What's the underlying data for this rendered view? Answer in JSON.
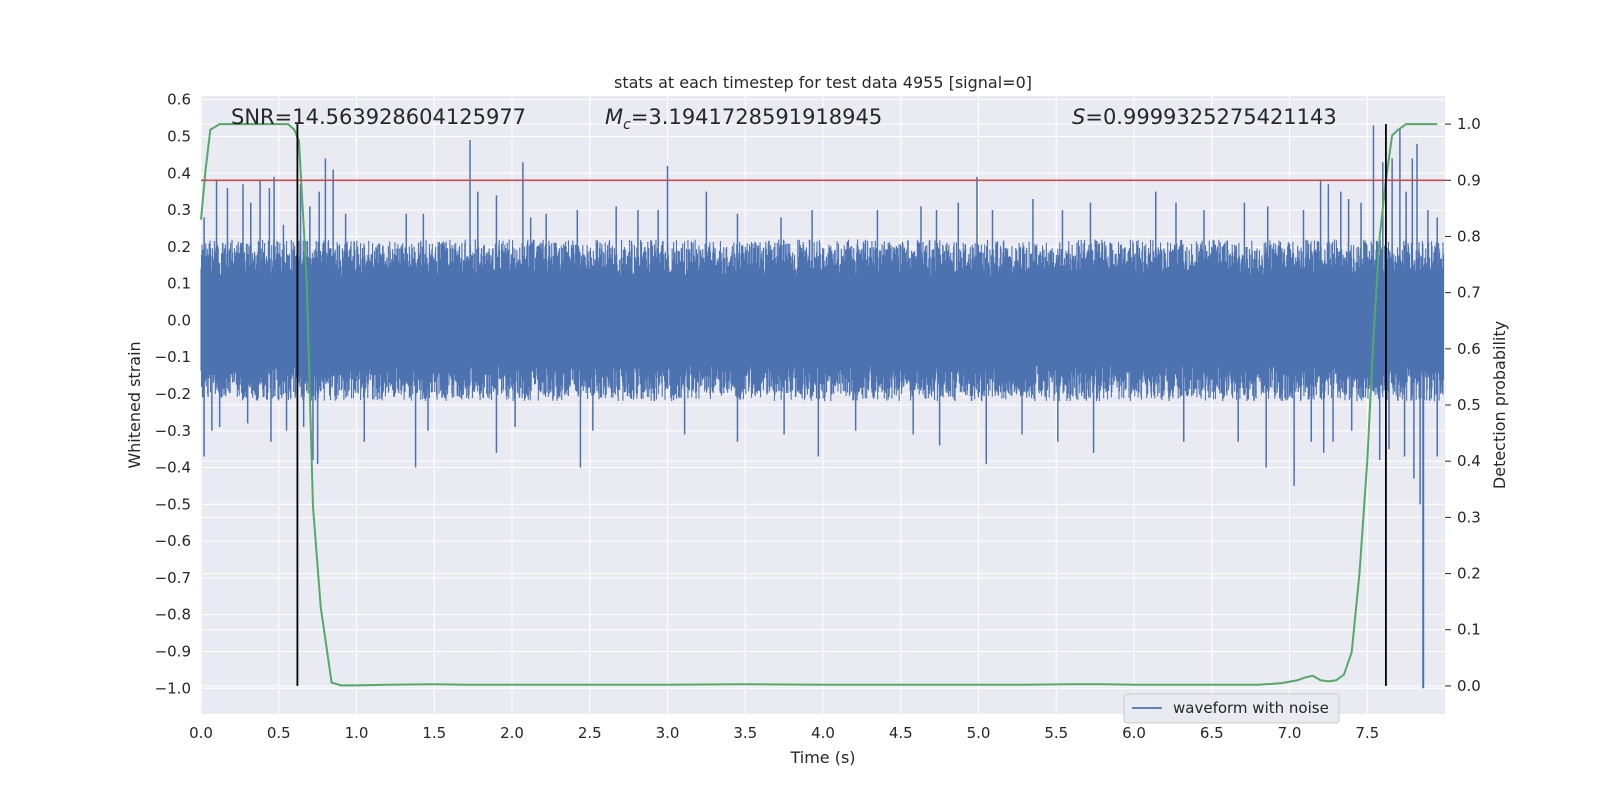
{
  "chart_data": {
    "type": "line",
    "title": "stats at each timestep for test data 4955 [signal=0]",
    "xlabel": "Time (s)",
    "ylabel": "Whitened strain",
    "y2label": "Detection probability",
    "xlim": [
      0.0,
      8.0
    ],
    "ylim": [
      -1.07,
      0.61
    ],
    "y2lim": [
      -0.05,
      1.05
    ],
    "xticks": [
      0.0,
      0.5,
      1.0,
      1.5,
      2.0,
      2.5,
      3.0,
      3.5,
      4.0,
      4.5,
      5.0,
      5.5,
      6.0,
      6.5,
      7.0,
      7.5
    ],
    "xtick_labels": [
      "0.0",
      "0.5",
      "1.0",
      "1.5",
      "2.0",
      "2.5",
      "3.0",
      "3.5",
      "4.0",
      "4.5",
      "5.0",
      "5.5",
      "6.0",
      "6.5",
      "7.0",
      "7.5"
    ],
    "yticks": [
      0.6,
      0.5,
      0.4,
      0.3,
      0.2,
      0.1,
      0.0,
      -0.1,
      -0.2,
      -0.3,
      -0.4,
      -0.5,
      -0.6,
      -0.7,
      -0.8,
      -0.9,
      -1.0
    ],
    "ytick_labels": [
      "0.6",
      "0.5",
      "0.4",
      "0.3",
      "0.2",
      "0.1",
      "0.0",
      "−0.1",
      "−0.2",
      "−0.3",
      "−0.4",
      "−0.5",
      "−0.6",
      "−0.7",
      "−0.8",
      "−0.9",
      "−1.0"
    ],
    "y2ticks": [
      1.0,
      0.9,
      0.8,
      0.7,
      0.6,
      0.5,
      0.4,
      0.3,
      0.2,
      0.1,
      0.0
    ],
    "y2tick_labels": [
      "1.0",
      "0.9",
      "0.8",
      "0.7",
      "0.6",
      "0.5",
      "0.4",
      "0.3",
      "0.2",
      "0.1",
      "0.0"
    ],
    "annotations": {
      "snr": "SNR=14.563928604125977",
      "mc_symbol": "M",
      "mc_sub": "c",
      "mc_value": "=3.1941728591918945",
      "s_symbol": "S",
      "s_value": "=0.9999325275421143"
    },
    "threshold_y2": 0.9,
    "vertical_lines_x": [
      0.62,
      7.62
    ],
    "legend": [
      "waveform with noise"
    ],
    "legend_position": "lower-right",
    "waveform": {
      "name": "waveform with noise",
      "duration_s": 7.99,
      "typical_abs_envelope": 0.22,
      "spike_positive": [
        [
          0.02,
          0.28
        ],
        [
          0.1,
          0.38
        ],
        [
          0.17,
          0.36
        ],
        [
          0.27,
          0.37
        ],
        [
          0.32,
          0.32
        ],
        [
          0.38,
          0.38
        ],
        [
          0.44,
          0.36
        ],
        [
          0.47,
          0.39
        ],
        [
          0.53,
          0.26
        ],
        [
          0.64,
          0.37
        ],
        [
          0.7,
          0.31
        ],
        [
          0.76,
          0.35
        ],
        [
          0.8,
          0.44
        ],
        [
          0.85,
          0.41
        ],
        [
          0.93,
          0.29
        ],
        [
          1.32,
          0.29
        ],
        [
          1.43,
          0.29
        ],
        [
          1.73,
          0.49
        ],
        [
          1.78,
          0.35
        ],
        [
          1.9,
          0.34
        ],
        [
          2.07,
          0.43
        ],
        [
          2.12,
          0.28
        ],
        [
          2.22,
          0.29
        ],
        [
          2.42,
          0.3
        ],
        [
          2.67,
          0.31
        ],
        [
          2.81,
          0.3
        ],
        [
          2.94,
          0.3
        ],
        [
          3.0,
          0.42
        ],
        [
          3.25,
          0.35
        ],
        [
          3.45,
          0.29
        ],
        [
          3.73,
          0.28
        ],
        [
          3.93,
          0.3
        ],
        [
          4.35,
          0.3
        ],
        [
          4.63,
          0.31
        ],
        [
          4.73,
          0.3
        ],
        [
          4.87,
          0.32
        ],
        [
          4.99,
          0.39
        ],
        [
          5.09,
          0.3
        ],
        [
          5.35,
          0.33
        ],
        [
          5.54,
          0.3
        ],
        [
          5.72,
          0.32
        ],
        [
          6.14,
          0.35
        ],
        [
          6.27,
          0.32
        ],
        [
          6.45,
          0.3
        ],
        [
          6.71,
          0.32
        ],
        [
          6.86,
          0.31
        ],
        [
          7.09,
          0.3
        ],
        [
          7.2,
          0.38
        ],
        [
          7.25,
          0.37
        ],
        [
          7.33,
          0.35
        ],
        [
          7.38,
          0.33
        ],
        [
          7.46,
          0.32
        ],
        [
          7.54,
          0.53
        ],
        [
          7.6,
          0.43
        ],
        [
          7.66,
          0.44
        ],
        [
          7.71,
          0.52
        ],
        [
          7.75,
          0.35
        ],
        [
          7.79,
          0.44
        ],
        [
          7.82,
          0.48
        ],
        [
          7.89,
          0.3
        ],
        [
          7.95,
          0.28
        ]
      ],
      "spike_negative": [
        [
          0.02,
          -0.37
        ],
        [
          0.07,
          -0.3
        ],
        [
          0.12,
          -0.29
        ],
        [
          0.3,
          -0.28
        ],
        [
          0.45,
          -0.33
        ],
        [
          0.55,
          -0.3
        ],
        [
          0.66,
          -0.29
        ],
        [
          0.72,
          -0.38
        ],
        [
          0.75,
          -0.39
        ],
        [
          1.05,
          -0.33
        ],
        [
          1.38,
          -0.4
        ],
        [
          1.46,
          -0.3
        ],
        [
          1.9,
          -0.36
        ],
        [
          2.02,
          -0.29
        ],
        [
          2.44,
          -0.4
        ],
        [
          2.52,
          -0.3
        ],
        [
          3.11,
          -0.31
        ],
        [
          3.45,
          -0.33
        ],
        [
          3.75,
          -0.31
        ],
        [
          3.97,
          -0.37
        ],
        [
          4.21,
          -0.3
        ],
        [
          4.58,
          -0.31
        ],
        [
          4.75,
          -0.34
        ],
        [
          5.05,
          -0.39
        ],
        [
          5.28,
          -0.31
        ],
        [
          5.51,
          -0.33
        ],
        [
          5.74,
          -0.36
        ],
        [
          6.32,
          -0.33
        ],
        [
          6.67,
          -0.33
        ],
        [
          6.85,
          -0.4
        ],
        [
          7.03,
          -0.45
        ],
        [
          7.14,
          -0.33
        ],
        [
          7.22,
          -0.36
        ],
        [
          7.28,
          -0.33
        ],
        [
          7.4,
          -0.3
        ],
        [
          7.58,
          -0.38
        ],
        [
          7.64,
          -0.35
        ],
        [
          7.74,
          -0.37
        ],
        [
          7.8,
          -0.43
        ],
        [
          7.84,
          -0.5
        ],
        [
          7.95,
          -0.37
        ]
      ],
      "spike_deep": [
        [
          7.86,
          -1.0
        ]
      ]
    },
    "detection_probability": {
      "x": [
        0.0,
        0.03,
        0.06,
        0.12,
        0.2,
        0.3,
        0.4,
        0.5,
        0.56,
        0.6,
        0.63,
        0.68,
        0.72,
        0.77,
        0.84,
        0.9,
        1.0,
        1.2,
        1.5,
        1.7,
        2.0,
        2.5,
        3.0,
        3.5,
        4.0,
        4.5,
        5.0,
        5.3,
        5.6,
        5.8,
        6.0,
        6.3,
        6.6,
        6.8,
        6.95,
        7.05,
        7.1,
        7.15,
        7.2,
        7.25,
        7.3,
        7.35,
        7.4,
        7.45,
        7.5,
        7.54,
        7.58,
        7.62,
        7.66,
        7.7,
        7.75,
        7.8,
        7.86,
        7.9,
        7.95
      ],
      "y": [
        0.83,
        0.92,
        0.99,
        1.0,
        1.0,
        1.0,
        1.0,
        1.0,
        1.0,
        0.99,
        0.97,
        0.72,
        0.32,
        0.14,
        0.006,
        0.001,
        0.001,
        0.002,
        0.003,
        0.002,
        0.002,
        0.002,
        0.002,
        0.003,
        0.002,
        0.002,
        0.002,
        0.002,
        0.003,
        0.003,
        0.002,
        0.002,
        0.002,
        0.002,
        0.005,
        0.01,
        0.015,
        0.018,
        0.01,
        0.008,
        0.01,
        0.02,
        0.06,
        0.2,
        0.4,
        0.62,
        0.8,
        0.9,
        0.98,
        0.99,
        1.0,
        1.0,
        1.0,
        1.0,
        1.0
      ]
    },
    "colors": {
      "background": "#eaeaf2",
      "grid": "#ffffff",
      "waveform": "#4c72b0",
      "probability": "#55a868",
      "threshold": "#c44e52",
      "vline": "#000000",
      "text": "#262626"
    }
  }
}
